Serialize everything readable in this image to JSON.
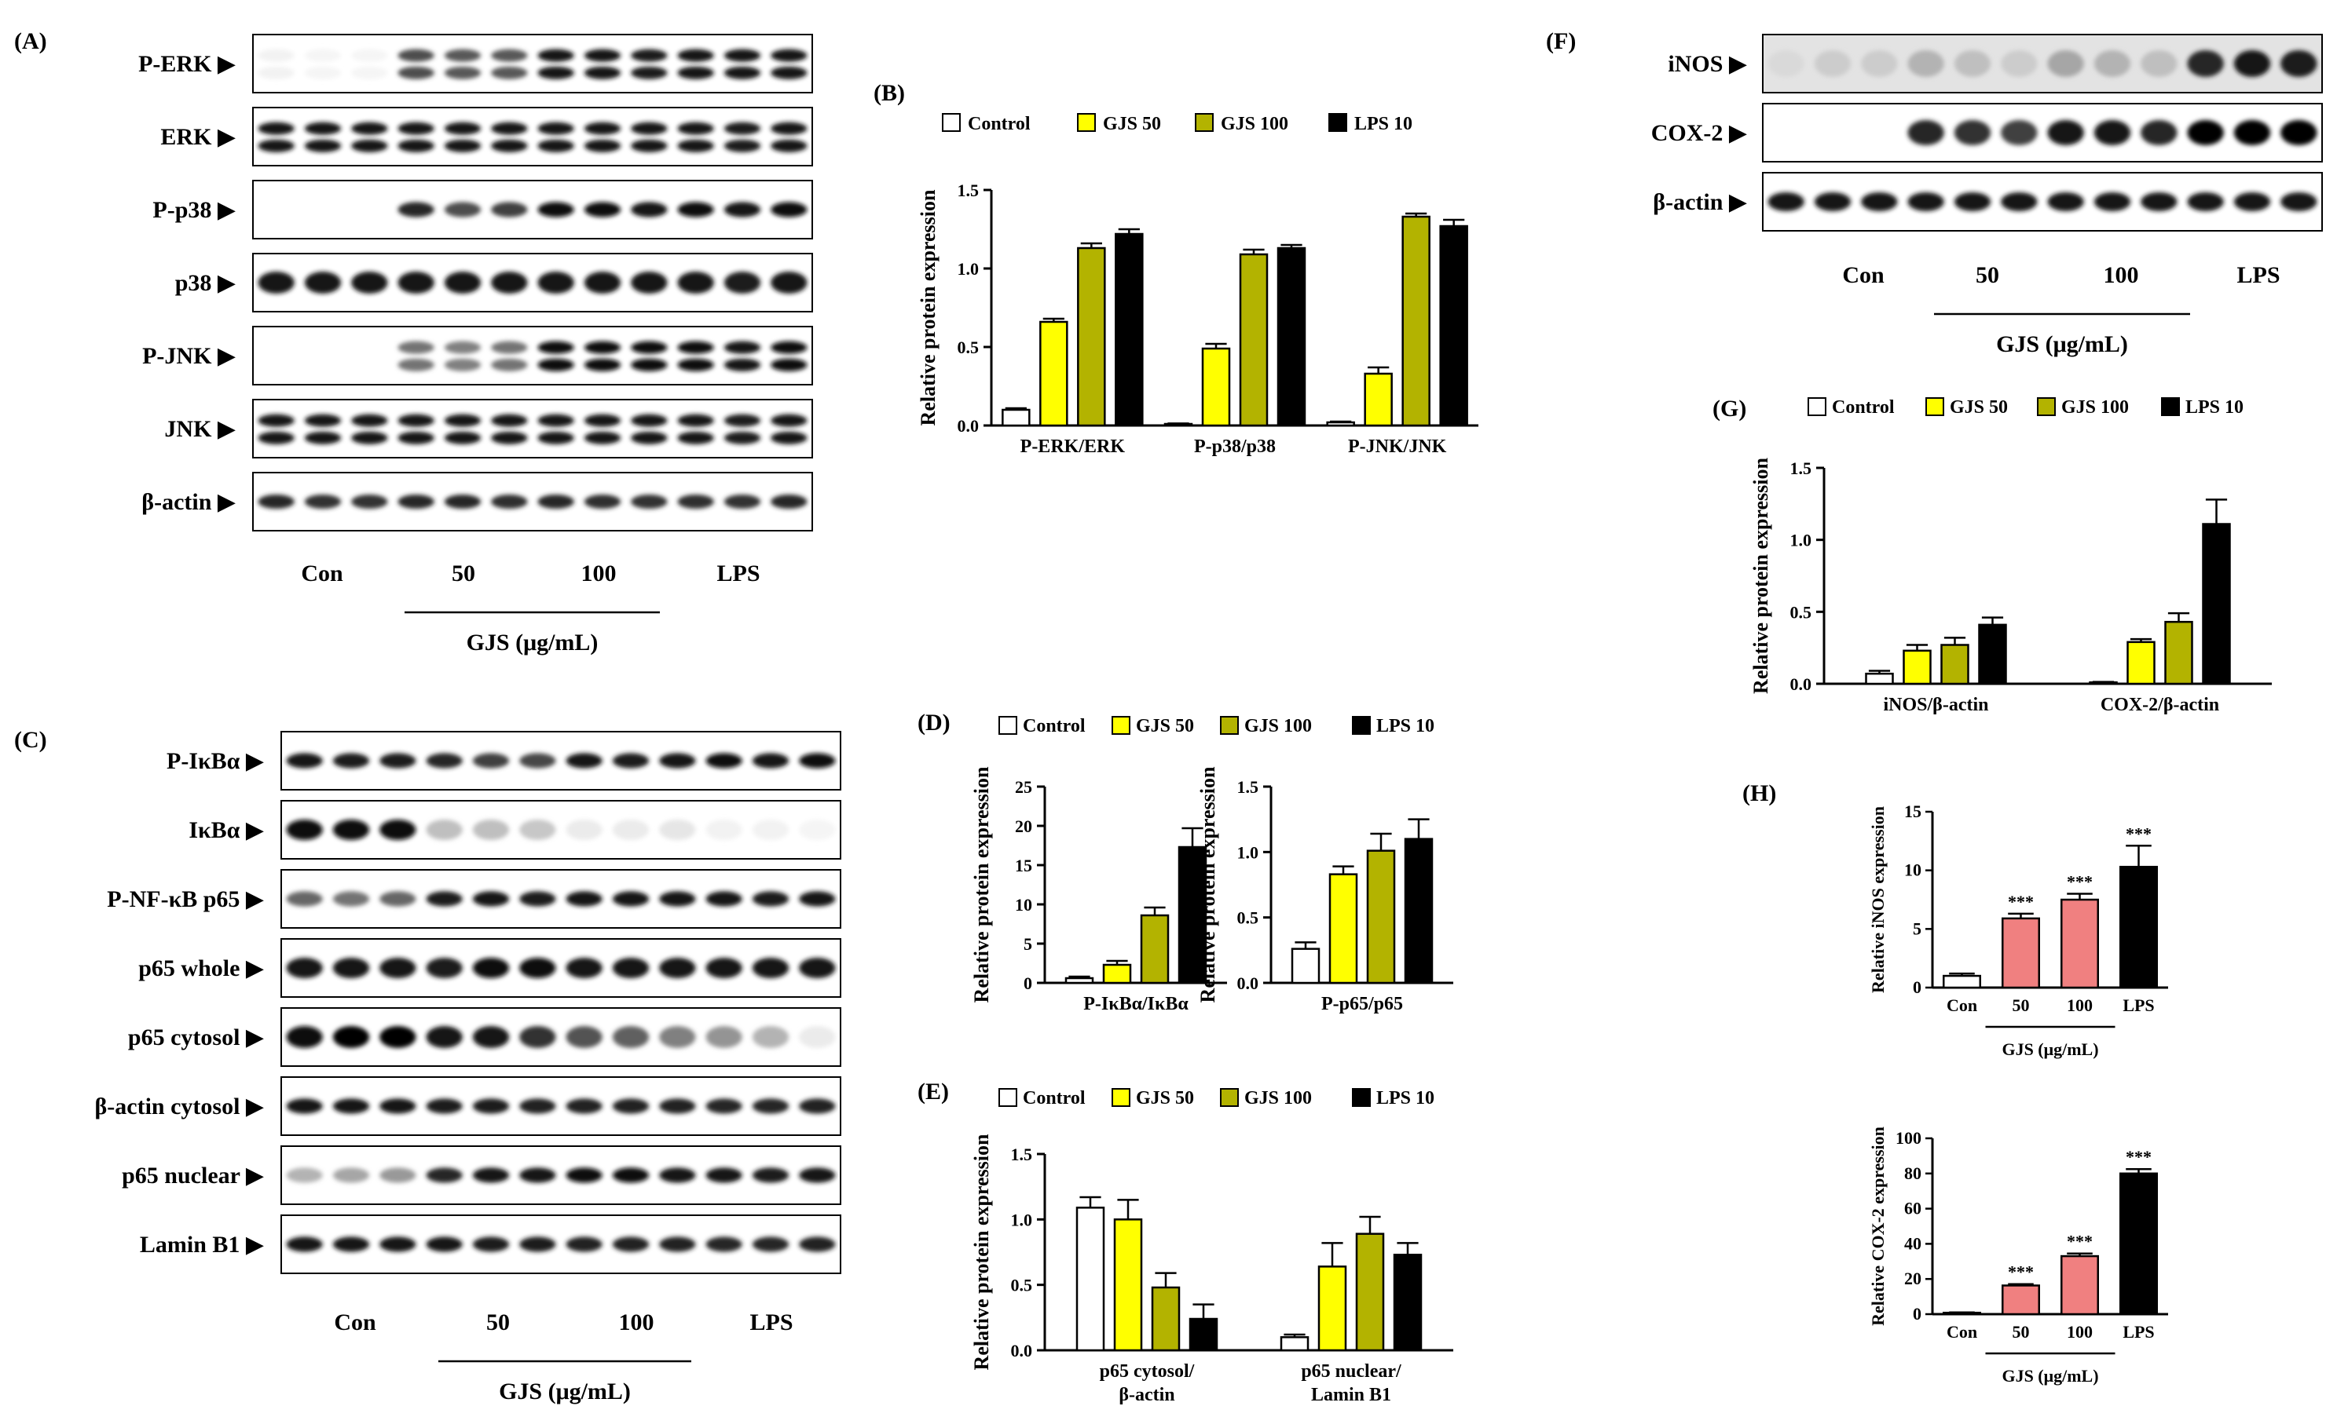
{
  "panels": {
    "A": "(A)",
    "B": "(B)",
    "C": "(C)",
    "D": "(D)",
    "E": "(E)",
    "F": "(F)",
    "G": "(G)",
    "H": "(H)"
  },
  "blot_a": {
    "labels": [
      "P-ERK",
      "ERK",
      "P-p38",
      "p38",
      "P-JNK",
      "JNK",
      "β-actin"
    ],
    "groups": [
      "Con",
      "50",
      "100",
      "LPS"
    ],
    "dose_label": "GJS (μg/mL)"
  },
  "blot_c": {
    "labels": [
      "P-IκBα",
      "IκBα",
      "P-NF-κB p65",
      "p65 whole",
      "p65 cytosol",
      "β-actin cytosol",
      "p65 nuclear",
      "Lamin B1"
    ],
    "groups": [
      "Con",
      "50",
      "100",
      "LPS"
    ],
    "dose_label": "GJS (μg/mL)"
  },
  "blot_f": {
    "labels": [
      "iNOS",
      "COX-2",
      "β-actin"
    ],
    "groups": [
      "Con",
      "50",
      "100",
      "LPS"
    ],
    "dose_label": "GJS (μg/mL)"
  },
  "legend": [
    "Control",
    "GJS 50",
    "GJS 100",
    "LPS 10"
  ],
  "series_colors": [
    "#ffffff",
    "#ffff00",
    "#b3b300",
    "#000000"
  ],
  "bar_colors_h": [
    "#ffffff",
    "#f08080",
    "#f08080",
    "#000000"
  ],
  "arrow": "▶",
  "chart_data": [
    {
      "id": "B",
      "type": "bar",
      "ylabel": "Relative protein expression",
      "ylim": [
        0,
        1.5
      ],
      "yticks": [
        "0.0",
        "0.5",
        "1.0",
        "1.5"
      ],
      "ytick_values": [
        0,
        0.5,
        1.0,
        1.5
      ],
      "categories": [
        "P-ERK/ERK",
        "P-p38/p38",
        "P-JNK/JNK"
      ],
      "series": [
        {
          "name": "Control",
          "values": [
            0.1,
            0.01,
            0.02
          ],
          "errors": [
            0.01,
            0.003,
            0.005
          ]
        },
        {
          "name": "GJS 50",
          "values": [
            0.66,
            0.49,
            0.33
          ],
          "errors": [
            0.02,
            0.03,
            0.04
          ]
        },
        {
          "name": "GJS 100",
          "values": [
            1.13,
            1.09,
            1.33
          ],
          "errors": [
            0.03,
            0.03,
            0.02
          ]
        },
        {
          "name": "LPS 10",
          "values": [
            1.22,
            1.13,
            1.27
          ],
          "errors": [
            0.03,
            0.02,
            0.04
          ]
        }
      ]
    },
    {
      "id": "D1",
      "type": "bar",
      "ylabel": "Relative protein expression",
      "ylim": [
        0,
        25
      ],
      "yticks": [
        "0",
        "5",
        "10",
        "15",
        "20",
        "25"
      ],
      "ytick_values": [
        0,
        5,
        10,
        15,
        20,
        25
      ],
      "categories": [
        "P-IκBα/IκBα"
      ],
      "series": [
        {
          "name": "Control",
          "values": [
            0.6
          ],
          "errors": [
            0.2
          ]
        },
        {
          "name": "GJS 50",
          "values": [
            2.3
          ],
          "errors": [
            0.5
          ]
        },
        {
          "name": "GJS 100",
          "values": [
            8.6
          ],
          "errors": [
            1.0
          ]
        },
        {
          "name": "LPS 10",
          "values": [
            17.3
          ],
          "errors": [
            2.4
          ]
        }
      ]
    },
    {
      "id": "D2",
      "type": "bar",
      "ylabel": "Relative protein expression",
      "ylim": [
        0,
        1.5
      ],
      "yticks": [
        "0.0",
        "0.5",
        "1.0",
        "1.5"
      ],
      "ytick_values": [
        0,
        0.5,
        1.0,
        1.5
      ],
      "categories": [
        "P-p65/p65"
      ],
      "series": [
        {
          "name": "Control",
          "values": [
            0.26
          ],
          "errors": [
            0.05
          ]
        },
        {
          "name": "GJS 50",
          "values": [
            0.83
          ],
          "errors": [
            0.06
          ]
        },
        {
          "name": "GJS 100",
          "values": [
            1.01
          ],
          "errors": [
            0.13
          ]
        },
        {
          "name": "LPS 10",
          "values": [
            1.1
          ],
          "errors": [
            0.15
          ]
        }
      ]
    },
    {
      "id": "E",
      "type": "bar",
      "ylabel": "Relative protein expression",
      "ylim": [
        0,
        1.5
      ],
      "yticks": [
        "0.0",
        "0.5",
        "1.0",
        "1.5"
      ],
      "ytick_values": [
        0,
        0.5,
        1.0,
        1.5
      ],
      "categories": [
        [
          "p65 cytosol/",
          "β-actin"
        ],
        [
          "p65 nuclear/",
          "Lamin B1"
        ]
      ],
      "series": [
        {
          "name": "Control",
          "values": [
            1.09,
            0.1
          ],
          "errors": [
            0.08,
            0.02
          ]
        },
        {
          "name": "GJS 50",
          "values": [
            1.0,
            0.64
          ],
          "errors": [
            0.15,
            0.18
          ]
        },
        {
          "name": "GJS 100",
          "values": [
            0.48,
            0.89
          ],
          "errors": [
            0.11,
            0.13
          ]
        },
        {
          "name": "LPS 10",
          "values": [
            0.24,
            0.73
          ],
          "errors": [
            0.11,
            0.09
          ]
        }
      ]
    },
    {
      "id": "G",
      "type": "bar",
      "ylabel": "Relative protein expression",
      "ylim": [
        0,
        1.5
      ],
      "yticks": [
        "0.0",
        "0.5",
        "1.0",
        "1.5"
      ],
      "ytick_values": [
        0,
        0.5,
        1.0,
        1.5
      ],
      "categories": [
        "iNOS/β-actin",
        "COX-2/β-actin"
      ],
      "series": [
        {
          "name": "Control",
          "values": [
            0.07,
            0.01
          ],
          "errors": [
            0.02,
            0.003
          ]
        },
        {
          "name": "GJS 50",
          "values": [
            0.23,
            0.29
          ],
          "errors": [
            0.04,
            0.02
          ]
        },
        {
          "name": "GJS 100",
          "values": [
            0.27,
            0.43
          ],
          "errors": [
            0.05,
            0.06
          ]
        },
        {
          "name": "LPS 10",
          "values": [
            0.41,
            1.11
          ],
          "errors": [
            0.05,
            0.17
          ]
        }
      ]
    },
    {
      "id": "H1",
      "type": "bar",
      "ylabel": "Relative iNOS expression",
      "ylim": [
        0,
        15
      ],
      "yticks": [
        "0",
        "5",
        "10",
        "15"
      ],
      "ytick_values": [
        0,
        5,
        10,
        15
      ],
      "categories": [
        "Con",
        "50",
        "100",
        "LPS"
      ],
      "values": [
        1.0,
        5.9,
        7.5,
        10.3
      ],
      "errors": [
        0.2,
        0.4,
        0.5,
        1.8
      ],
      "significance": [
        "",
        "***",
        "***",
        "***"
      ],
      "xgroup": "GJS (μg/mL)"
    },
    {
      "id": "H2",
      "type": "bar",
      "ylabel": "Relative COX-2 expression",
      "ylim": [
        0,
        100
      ],
      "yticks": [
        "0",
        "20",
        "40",
        "60",
        "80",
        "100"
      ],
      "ytick_values": [
        0,
        20,
        40,
        60,
        80,
        100
      ],
      "categories": [
        "Con",
        "50",
        "100",
        "LPS"
      ],
      "values": [
        0.8,
        16.3,
        33.0,
        80.0
      ],
      "errors": [
        0.2,
        0.8,
        1.5,
        2.5
      ],
      "significance": [
        "",
        "***",
        "***",
        "***"
      ],
      "xgroup": "GJS (μg/mL)"
    }
  ]
}
